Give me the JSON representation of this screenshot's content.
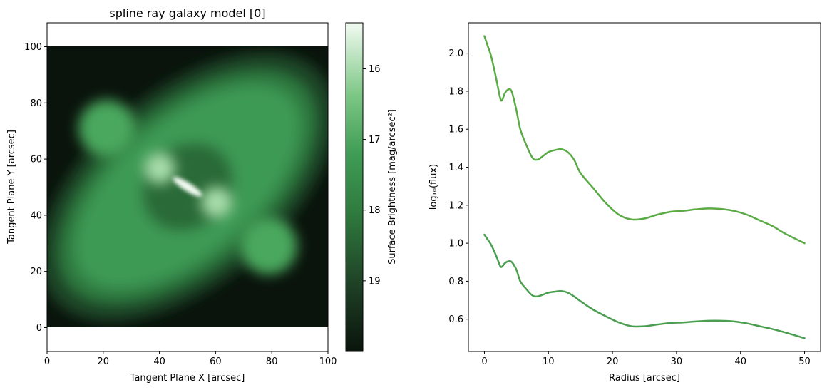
{
  "colors": {
    "image_dark": "#0a140c",
    "image_mid": "#3e9a55",
    "image_light": "#f2fbf2",
    "profile_line_upper": "#5aaa46",
    "profile_line_lower": "#4a9e4f"
  },
  "chart_data": [
    {
      "type": "heatmap",
      "title": "spline ray galaxy model [0]",
      "xlabel": "Tangent Plane X [arcsec]",
      "ylabel": "Tangent Plane Y [arcsec]",
      "xlim": [
        0,
        100
      ],
      "ylim": [
        -8.5,
        108.5
      ],
      "x_ticks": [
        "0",
        "20",
        "40",
        "60",
        "80",
        "100"
      ],
      "y_ticks": [
        "0",
        "20",
        "40",
        "60",
        "80",
        "100"
      ],
      "image_extent": {
        "x": [
          0,
          100
        ],
        "y": [
          0,
          100
        ]
      },
      "colormap": "Greens_r",
      "grid": false,
      "colorbar": {
        "label": "Surface Brightness [mag/arcsec²]",
        "ticks": [
          "16",
          "17",
          "18",
          "19"
        ],
        "range": [
          20.0,
          15.35
        ]
      },
      "features": {
        "center": [
          50,
          50
        ],
        "core_position_angle_deg": -40,
        "inner_blobs": [
          [
            40,
            56
          ],
          [
            61,
            44
          ]
        ],
        "outer_lobes": [
          [
            20,
            70
          ],
          [
            80,
            30
          ]
        ]
      }
    },
    {
      "type": "line",
      "xlabel": "Radius [arcsec]",
      "ylabel": "log₁₀(flux)",
      "xlim": [
        -2.5,
        52.5
      ],
      "ylim": [
        0.43,
        2.16
      ],
      "x_ticks": [
        "0",
        "10",
        "20",
        "30",
        "40",
        "50"
      ],
      "y_ticks": [
        "0.6",
        "0.8",
        "1.0",
        "1.2",
        "1.4",
        "1.6",
        "1.8",
        "2.0"
      ],
      "grid": false,
      "legend": "none",
      "series": [
        {
          "x": [
            0,
            0.5,
            1,
            1.5,
            2,
            2.5,
            2.8,
            3.2,
            3.8,
            4.3,
            5,
            5.6,
            6.5,
            7.5,
            8.3,
            9.2,
            10,
            11,
            12,
            13,
            14,
            15,
            17,
            19,
            21,
            23,
            25,
            27,
            29,
            31,
            33,
            35,
            37,
            39,
            41,
            43,
            45,
            47,
            50
          ],
          "values": [
            2.09,
            2.04,
            1.99,
            1.92,
            1.84,
            1.76,
            1.755,
            1.79,
            1.81,
            1.795,
            1.7,
            1.6,
            1.52,
            1.45,
            1.44,
            1.46,
            1.48,
            1.49,
            1.495,
            1.48,
            1.44,
            1.37,
            1.29,
            1.21,
            1.15,
            1.125,
            1.13,
            1.15,
            1.165,
            1.17,
            1.178,
            1.183,
            1.18,
            1.17,
            1.15,
            1.12,
            1.09,
            1.05,
            1.0
          ]
        },
        {
          "x": [
            0,
            0.5,
            1,
            1.5,
            2,
            2.5,
            2.8,
            3.2,
            3.8,
            4.3,
            5,
            5.6,
            6.5,
            7.5,
            8.3,
            9.2,
            10,
            11,
            12,
            13,
            14,
            15,
            17,
            19,
            21,
            23,
            25,
            27,
            29,
            31,
            33,
            35,
            37,
            39,
            41,
            43,
            45,
            47,
            50
          ],
          "values": [
            1.045,
            1.02,
            0.995,
            0.96,
            0.92,
            0.878,
            0.878,
            0.895,
            0.905,
            0.9,
            0.86,
            0.8,
            0.76,
            0.725,
            0.72,
            0.73,
            0.74,
            0.745,
            0.748,
            0.74,
            0.72,
            0.695,
            0.65,
            0.615,
            0.583,
            0.563,
            0.563,
            0.572,
            0.58,
            0.583,
            0.588,
            0.592,
            0.592,
            0.588,
            0.578,
            0.563,
            0.548,
            0.53,
            0.5
          ]
        }
      ]
    }
  ]
}
